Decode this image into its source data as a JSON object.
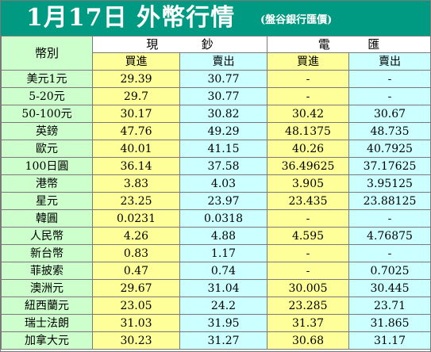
{
  "title": {
    "main": "1月17日 外幣行情",
    "sub": "(盤谷銀行匯價)"
  },
  "header": {
    "currency_label": "幣別",
    "cash": [
      "現",
      "鈔"
    ],
    "wire": [
      "電",
      "匯"
    ],
    "buy_label": "買進",
    "sell_label": "賣出"
  },
  "rows": [
    {
      "name": "美元1元",
      "cash_buy": "29.39",
      "cash_sell": "30.77",
      "wire_buy": "-",
      "wire_sell": "-"
    },
    {
      "name": "5-20元",
      "cash_buy": "29.7",
      "cash_sell": "30.77",
      "wire_buy": "-",
      "wire_sell": "-"
    },
    {
      "name": "50-100元",
      "cash_buy": "30.17",
      "cash_sell": "30.82",
      "wire_buy": "30.42",
      "wire_sell": "30.67"
    },
    {
      "name": "英鎊",
      "cash_buy": "47.76",
      "cash_sell": "49.29",
      "wire_buy": "48.1375",
      "wire_sell": "48.735"
    },
    {
      "name": "歐元",
      "cash_buy": "40.01",
      "cash_sell": "41.15",
      "wire_buy": "40.26",
      "wire_sell": "40.7925"
    },
    {
      "name": "100日圓",
      "cash_buy": "36.14",
      "cash_sell": "37.58",
      "wire_buy": "36.49625",
      "wire_sell": "37.17625"
    },
    {
      "name": "港幣",
      "cash_buy": "3.83",
      "cash_sell": "4.03",
      "wire_buy": "3.905",
      "wire_sell": "3.95125"
    },
    {
      "name": "星元",
      "cash_buy": "23.25",
      "cash_sell": "23.97",
      "wire_buy": "23.435",
      "wire_sell": "23.88125"
    },
    {
      "name": "韓圓",
      "cash_buy": "0.0231",
      "cash_sell": "0.0318",
      "wire_buy": "-",
      "wire_sell": "-"
    },
    {
      "name": "人民幣",
      "cash_buy": "4.26",
      "cash_sell": "4.88",
      "wire_buy": "4.595",
      "wire_sell": "4.76875"
    },
    {
      "name": "新台幣",
      "cash_buy": "0.83",
      "cash_sell": "1.17",
      "wire_buy": "-",
      "wire_sell": "-"
    },
    {
      "name": "菲披索",
      "cash_buy": "0.47",
      "cash_sell": "0.74",
      "wire_buy": "-",
      "wire_sell": "0.7025"
    },
    {
      "name": "澳洲元",
      "cash_buy": "29.67",
      "cash_sell": "31.04",
      "wire_buy": "30.005",
      "wire_sell": "30.445"
    },
    {
      "name": "紐西蘭元",
      "cash_buy": "23.05",
      "cash_sell": "24.2",
      "wire_buy": "23.285",
      "wire_sell": "23.71"
    },
    {
      "name": "瑞士法朗",
      "cash_buy": "31.03",
      "cash_sell": "31.95",
      "wire_buy": "31.37",
      "wire_sell": "31.865"
    },
    {
      "name": "加拿大元",
      "cash_buy": "30.23",
      "cash_sell": "31.27",
      "wire_buy": "30.68",
      "wire_sell": "31.17"
    }
  ],
  "colors": {
    "title_bg": "#009a82",
    "name_col": "#ccffcc",
    "buy_col": "#ffff99",
    "sell_col": "#ccffff",
    "border": "#7a7a7a"
  }
}
